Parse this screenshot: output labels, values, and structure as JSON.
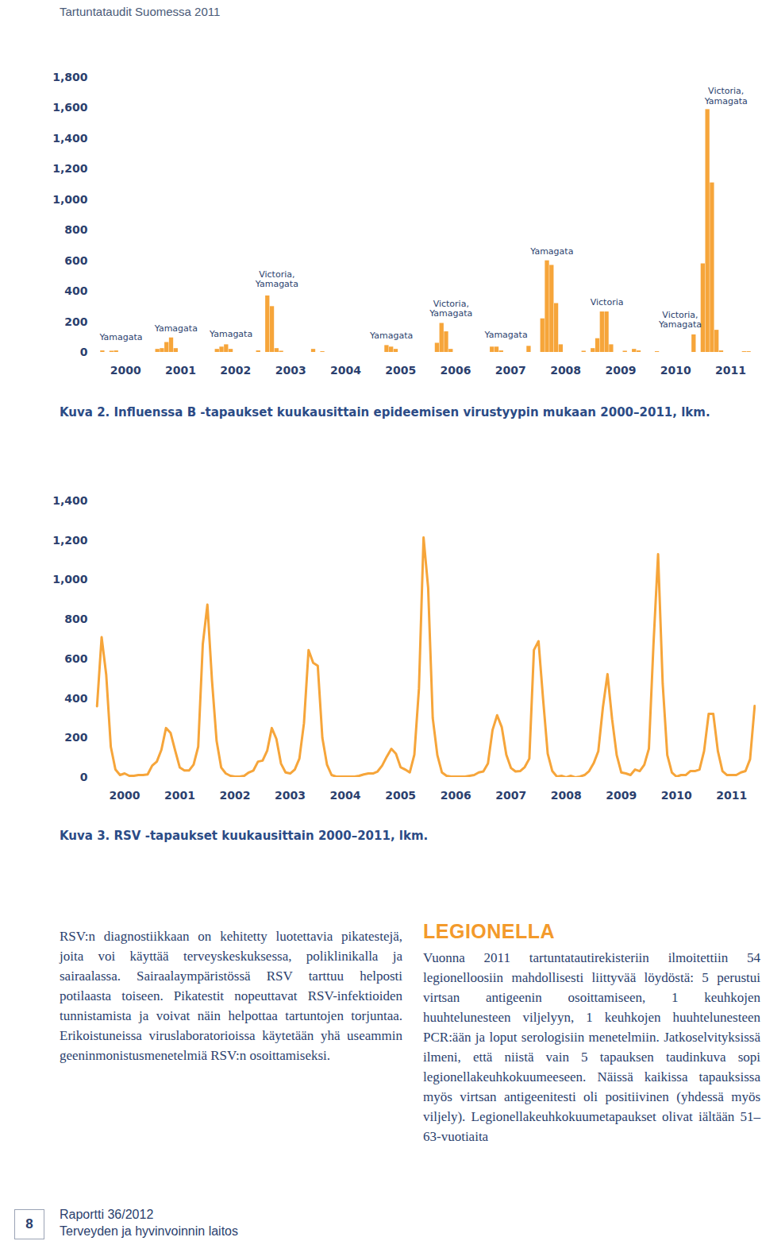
{
  "header": "Tartuntataudit Suomessa 2011",
  "chart_data": [
    {
      "type": "bar",
      "title": "Kuva 2. Influenssa B -tapaukset kuukausittain epideemisen virustyypin mukaan 2000–2011, lkm.",
      "categories": [
        null,
        null,
        null,
        null,
        null,
        null,
        "2000",
        null,
        null,
        null,
        null,
        null,
        null,
        null,
        null,
        null,
        null,
        null,
        "2001",
        null,
        null,
        null,
        null,
        null,
        null,
        null,
        null,
        null,
        null,
        null,
        "2002",
        null,
        null,
        null,
        null,
        null,
        null,
        null,
        null,
        null,
        null,
        null,
        "2003",
        null,
        null,
        null,
        null,
        null,
        null,
        null,
        null,
        null,
        null,
        null,
        "2004",
        null,
        null,
        null,
        null,
        null,
        null,
        null,
        null,
        null,
        null,
        null,
        "2005",
        null,
        null,
        null,
        null,
        null,
        null,
        null,
        null,
        null,
        null,
        null,
        "2006",
        null,
        null,
        null,
        null,
        null,
        null,
        null,
        null,
        null,
        null,
        null,
        "2007",
        null,
        null,
        null,
        null,
        null,
        null,
        null,
        null,
        null,
        null,
        null,
        "2008",
        null,
        null,
        null,
        null,
        null,
        null,
        null,
        null,
        null,
        null,
        null,
        "2009",
        null,
        null,
        null,
        null,
        null,
        null,
        null,
        null,
        null,
        null,
        null,
        "2010",
        null,
        null,
        null,
        null,
        null,
        null,
        null,
        null,
        null,
        null,
        null,
        "2011",
        null,
        null,
        null,
        null,
        null
      ],
      "values": [
        0,
        10,
        0,
        8,
        10,
        0,
        0,
        0,
        0,
        0,
        0,
        0,
        0,
        20,
        25,
        65,
        95,
        25,
        0,
        0,
        0,
        0,
        0,
        0,
        0,
        0,
        20,
        35,
        50,
        20,
        0,
        0,
        0,
        0,
        0,
        10,
        0,
        370,
        300,
        25,
        8,
        0,
        0,
        0,
        0,
        0,
        0,
        20,
        0,
        5,
        0,
        0,
        0,
        0,
        0,
        0,
        0,
        0,
        0,
        0,
        0,
        0,
        0,
        45,
        35,
        20,
        0,
        0,
        0,
        0,
        0,
        0,
        0,
        0,
        60,
        190,
        135,
        20,
        0,
        0,
        0,
        0,
        0,
        0,
        0,
        0,
        35,
        35,
        10,
        0,
        0,
        0,
        0,
        0,
        40,
        0,
        0,
        220,
        600,
        570,
        320,
        50,
        0,
        0,
        0,
        0,
        8,
        0,
        25,
        90,
        265,
        265,
        50,
        0,
        0,
        8,
        0,
        20,
        10,
        0,
        0,
        0,
        5,
        0,
        0,
        0,
        0,
        0,
        0,
        0,
        115,
        0,
        580,
        1590,
        1110,
        145,
        10,
        0,
        0,
        0,
        0,
        5,
        5,
        0
      ],
      "color": "#f6a53a",
      "ylim": [
        0,
        1800
      ],
      "yticks": [
        0,
        200,
        400,
        600,
        800,
        1000,
        1200,
        1400,
        1600,
        1800
      ],
      "annotations": [
        {
          "x": 5,
          "y": 100,
          "text": "Yamagata"
        },
        {
          "x": 17,
          "y": 160,
          "text": "Yamagata"
        },
        {
          "x": 29,
          "y": 120,
          "text": "Yamagata"
        },
        {
          "x": 39,
          "y": 480,
          "text": "Victoria,\nYamagata"
        },
        {
          "x": 64,
          "y": 110,
          "text": "Yamagata"
        },
        {
          "x": 77,
          "y": 290,
          "text": "Victoria,\nYamagata"
        },
        {
          "x": 89,
          "y": 115,
          "text": "Yamagata"
        },
        {
          "x": 99,
          "y": 665,
          "text": "Yamagata"
        },
        {
          "x": 111,
          "y": 330,
          "text": "Victoria"
        },
        {
          "x": 127,
          "y": 215,
          "text": "Victoria,\nYamagata"
        },
        {
          "x": 137,
          "y": 1680,
          "text": "Victoria,\nYamagata"
        }
      ]
    },
    {
      "type": "line",
      "title": "Kuva 3. RSV -tapaukset kuukausittain 2000–2011, lkm.",
      "categories": [
        null,
        null,
        null,
        null,
        null,
        null,
        "2000",
        null,
        null,
        null,
        null,
        null,
        null,
        null,
        null,
        null,
        null,
        null,
        "2001",
        null,
        null,
        null,
        null,
        null,
        null,
        null,
        null,
        null,
        null,
        null,
        "2002",
        null,
        null,
        null,
        null,
        null,
        null,
        null,
        null,
        null,
        null,
        null,
        "2003",
        null,
        null,
        null,
        null,
        null,
        null,
        null,
        null,
        null,
        null,
        null,
        "2004",
        null,
        null,
        null,
        null,
        null,
        null,
        null,
        null,
        null,
        null,
        null,
        "2005",
        null,
        null,
        null,
        null,
        null,
        null,
        null,
        null,
        null,
        null,
        null,
        "2006",
        null,
        null,
        null,
        null,
        null,
        null,
        null,
        null,
        null,
        null,
        null,
        "2007",
        null,
        null,
        null,
        null,
        null,
        null,
        null,
        null,
        null,
        null,
        null,
        "2008",
        null,
        null,
        null,
        null,
        null,
        null,
        null,
        null,
        null,
        null,
        null,
        "2009",
        null,
        null,
        null,
        null,
        null,
        null,
        null,
        null,
        null,
        null,
        null,
        "2010",
        null,
        null,
        null,
        null,
        null,
        null,
        null,
        null,
        null,
        null,
        null,
        "2011",
        null,
        null,
        null,
        null,
        null
      ],
      "values": [
        360,
        710,
        520,
        155,
        40,
        12,
        20,
        8,
        8,
        12,
        12,
        15,
        60,
        80,
        140,
        250,
        225,
        135,
        50,
        35,
        35,
        65,
        155,
        675,
        875,
        490,
        185,
        50,
        20,
        8,
        4,
        4,
        8,
        25,
        35,
        80,
        85,
        135,
        250,
        195,
        70,
        25,
        20,
        40,
        95,
        275,
        645,
        580,
        565,
        200,
        65,
        12,
        4,
        4,
        4,
        4,
        4,
        8,
        15,
        20,
        20,
        30,
        60,
        105,
        145,
        120,
        52,
        40,
        25,
        115,
        450,
        1215,
        960,
        300,
        113,
        25,
        8,
        4,
        4,
        4,
        4,
        8,
        12,
        25,
        30,
        70,
        240,
        315,
        255,
        115,
        48,
        30,
        32,
        52,
        95,
        645,
        690,
        395,
        120,
        32,
        4,
        8,
        0,
        8,
        0,
        4,
        12,
        32,
        72,
        133,
        355,
        523,
        295,
        113,
        25,
        20,
        12,
        40,
        32,
        64,
        145,
        675,
        1130,
        475,
        113,
        25,
        4,
        12,
        12,
        32,
        32,
        40,
        133,
        322,
        322,
        133,
        32,
        12,
        12,
        12,
        25,
        32,
        92,
        362
      ],
      "color": "#f6a53a",
      "ylim": [
        0,
        1400
      ],
      "yticks": [
        0,
        200,
        400,
        600,
        800,
        1000,
        1200,
        1400
      ]
    }
  ],
  "text_left": "RSV:n diagnostiikkaan on kehitetty luotettavia pikatestejä, joita voi käyttää terveyskeskuksessa, poliklinikalla ja sairaalassa. Sairaalaympäristössä RSV tarttuu helposti potilaasta toiseen. Pikatestit nopeuttavat RSV-infektioiden tunnistamista ja voivat näin helpottaa tartuntojen torjuntaa. Erikoistuneissa viruslaboratorioissa käytetään yhä useammin geeninmonistusmenetelmiä RSV:n osoittamiseksi.",
  "legionella": {
    "heading": "LEGIONELLA",
    "text": "Vuonna 2011 tartuntatautirekisteriin ilmoitettiin 54 legionelloosiin mahdollisesti liittyvää löydöstä: 5 perustui virtsan antigeenin osoittamiseen, 1 keuhkojen huuhtelunesteen viljelyyn, 1 keuhkojen huuhtelunesteen PCR:ään ja loput serologisiin menetelmiin. Jatkoselvityksissä ilmeni, että niistä vain 5 tapauksen taudinkuva sopi legionellakeuhkokuumeeseen. Näissä kaikissa tapauksissa myös virtsan antigeenitesti oli positiivinen (yhdessä myös viljely). Legionellakeuhkokuumetapaukset olivat iältään 51–63-vuotiaita"
  },
  "footer": {
    "page": "8",
    "report": "Raportti 36/2012",
    "publisher": "Terveyden ja hyvinvoinnin laitos"
  }
}
